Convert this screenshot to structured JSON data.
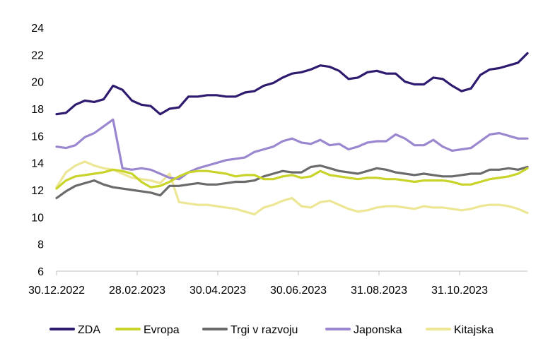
{
  "chart_data": {
    "type": "line",
    "title": "",
    "xlabel": "",
    "ylabel": "",
    "ylim": [
      6,
      24
    ],
    "yticks": [
      "6",
      "8",
      "10",
      "12",
      "14",
      "16",
      "18",
      "20",
      "22",
      "24"
    ],
    "xticks": [
      "30.12.2022",
      "28.02.2023",
      "30.04.2023",
      "30.06.2023",
      "31.08.2023",
      "31.10.2023"
    ],
    "grid": false,
    "legend": "bottom",
    "series": [
      {
        "name": "ZDA",
        "color": "#2e1a6e",
        "values": [
          17.6,
          17.7,
          18.3,
          18.6,
          18.5,
          18.7,
          19.7,
          19.4,
          18.6,
          18.3,
          18.2,
          17.6,
          18.0,
          18.1,
          18.9,
          18.9,
          19.0,
          19.0,
          18.9,
          18.9,
          19.2,
          19.3,
          19.7,
          19.9,
          20.3,
          20.6,
          20.7,
          20.9,
          21.2,
          21.1,
          20.8,
          20.2,
          20.3,
          20.7,
          20.8,
          20.6,
          20.6,
          20.0,
          19.8,
          19.8,
          20.3,
          20.2,
          19.7,
          19.3,
          19.5,
          20.5,
          20.9,
          21.0,
          21.2,
          21.4,
          22.1
        ]
      },
      {
        "name": "Evropa",
        "color": "#c8d42a",
        "values": [
          12.1,
          12.7,
          13.0,
          13.1,
          13.2,
          13.3,
          13.5,
          13.4,
          13.2,
          12.6,
          12.2,
          12.3,
          12.6,
          13.0,
          13.3,
          13.4,
          13.4,
          13.3,
          13.2,
          13.0,
          13.1,
          13.1,
          12.8,
          12.8,
          13.0,
          13.1,
          12.9,
          13.0,
          13.4,
          13.1,
          13.0,
          12.9,
          12.8,
          12.9,
          12.9,
          12.8,
          12.8,
          12.7,
          12.6,
          12.7,
          12.7,
          12.7,
          12.6,
          12.4,
          12.4,
          12.6,
          12.8,
          12.9,
          13.0,
          13.2,
          13.6
        ]
      },
      {
        "name": "Trgi v razvoju",
        "color": "#6b6b6b",
        "values": [
          11.4,
          11.9,
          12.3,
          12.5,
          12.7,
          12.4,
          12.2,
          12.1,
          12.0,
          11.9,
          11.8,
          11.6,
          12.3,
          12.3,
          12.4,
          12.5,
          12.4,
          12.4,
          12.5,
          12.6,
          12.6,
          12.7,
          13.0,
          13.2,
          13.4,
          13.3,
          13.3,
          13.7,
          13.8,
          13.6,
          13.4,
          13.3,
          13.2,
          13.4,
          13.6,
          13.5,
          13.3,
          13.2,
          13.1,
          13.2,
          13.1,
          13.0,
          13.0,
          13.1,
          13.2,
          13.2,
          13.5,
          13.5,
          13.6,
          13.5,
          13.7
        ]
      },
      {
        "name": "Japonska",
        "color": "#9b87d0",
        "values": [
          15.2,
          15.1,
          15.3,
          15.9,
          16.2,
          16.7,
          17.2,
          13.6,
          13.5,
          13.6,
          13.5,
          13.2,
          12.9,
          12.8,
          13.3,
          13.6,
          13.8,
          14.0,
          14.2,
          14.3,
          14.4,
          14.8,
          15.0,
          15.2,
          15.6,
          15.8,
          15.5,
          15.4,
          15.7,
          15.3,
          15.4,
          15.0,
          15.2,
          15.5,
          15.6,
          15.6,
          16.1,
          15.8,
          15.3,
          15.3,
          15.7,
          15.2,
          14.9,
          15.0,
          15.1,
          15.6,
          16.1,
          16.2,
          16.0,
          15.8,
          15.8
        ]
      },
      {
        "name": "Kitajska",
        "color": "#ede695",
        "values": [
          12.2,
          13.3,
          13.8,
          14.1,
          13.8,
          13.6,
          13.5,
          13.2,
          12.9,
          12.8,
          12.7,
          12.5,
          13.2,
          11.1,
          11.0,
          10.9,
          10.9,
          10.8,
          10.7,
          10.6,
          10.4,
          10.2,
          10.7,
          10.9,
          11.2,
          11.4,
          10.8,
          10.7,
          11.1,
          11.2,
          10.9,
          10.6,
          10.4,
          10.5,
          10.7,
          10.8,
          10.8,
          10.7,
          10.6,
          10.8,
          10.7,
          10.7,
          10.6,
          10.5,
          10.6,
          10.8,
          10.9,
          10.9,
          10.8,
          10.6,
          10.3
        ]
      }
    ]
  }
}
